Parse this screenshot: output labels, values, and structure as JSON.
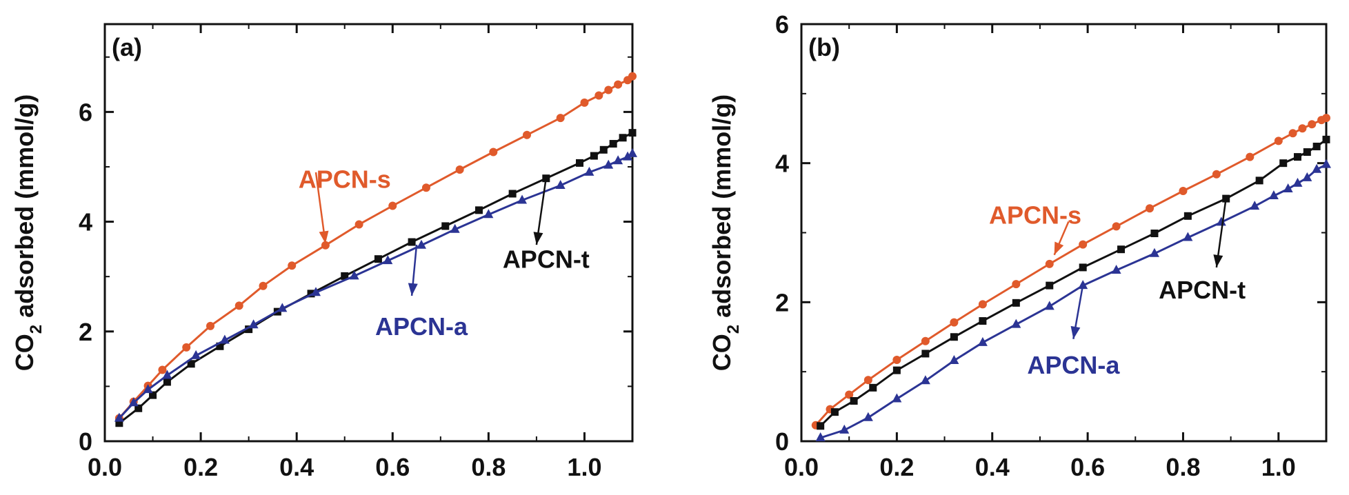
{
  "chart_data": [
    {
      "type": "line",
      "panel_label": "(a)",
      "xlabel": "",
      "ylabel": "CO2 adsorbed (mmol/g)",
      "ylabel_parts": {
        "pre": "CO",
        "sub": "2",
        "post": " adsorbed (mmol/g)"
      },
      "xlim": [
        0.0,
        1.1
      ],
      "ylim": [
        0,
        7.6
      ],
      "x_ticks": [
        0.0,
        0.2,
        0.4,
        0.6,
        0.8,
        1.0
      ],
      "x_tick_labels": [
        "0.0",
        "0.2",
        "0.4",
        "0.6",
        "0.8",
        "1.0"
      ],
      "y_ticks": [
        0,
        2,
        4,
        6
      ],
      "y_tick_labels": [
        "0",
        "2",
        "4",
        "6"
      ],
      "grid": false,
      "series": [
        {
          "name": "APCN-s",
          "color": "#e05a2b",
          "marker": "circle",
          "x": [
            0.03,
            0.06,
            0.09,
            0.12,
            0.17,
            0.22,
            0.28,
            0.33,
            0.39,
            0.46,
            0.53,
            0.6,
            0.67,
            0.74,
            0.81,
            0.88,
            0.95,
            1.0,
            1.03,
            1.05,
            1.07,
            1.09,
            1.1
          ],
          "y": [
            0.42,
            0.72,
            1.01,
            1.3,
            1.71,
            2.1,
            2.47,
            2.83,
            3.2,
            3.57,
            3.95,
            4.29,
            4.62,
            4.95,
            5.27,
            5.58,
            5.89,
            6.17,
            6.3,
            6.4,
            6.5,
            6.58,
            6.65
          ]
        },
        {
          "name": "APCN-t",
          "color": "#111111",
          "marker": "square",
          "x": [
            0.03,
            0.07,
            0.1,
            0.13,
            0.18,
            0.24,
            0.3,
            0.36,
            0.43,
            0.5,
            0.57,
            0.64,
            0.71,
            0.78,
            0.85,
            0.92,
            0.99,
            1.02,
            1.04,
            1.06,
            1.08,
            1.1
          ],
          "y": [
            0.33,
            0.6,
            0.84,
            1.08,
            1.41,
            1.73,
            2.04,
            2.36,
            2.69,
            3.01,
            3.32,
            3.63,
            3.92,
            4.21,
            4.51,
            4.79,
            5.07,
            5.2,
            5.31,
            5.42,
            5.53,
            5.62
          ]
        },
        {
          "name": "APCN-a",
          "color": "#2b3494",
          "marker": "triangle",
          "x": [
            0.03,
            0.06,
            0.09,
            0.13,
            0.19,
            0.25,
            0.31,
            0.37,
            0.44,
            0.52,
            0.59,
            0.66,
            0.73,
            0.8,
            0.87,
            0.95,
            1.01,
            1.05,
            1.07,
            1.09,
            1.1
          ],
          "y": [
            0.42,
            0.7,
            0.94,
            1.2,
            1.56,
            1.84,
            2.12,
            2.42,
            2.71,
            3.01,
            3.29,
            3.57,
            3.86,
            4.13,
            4.39,
            4.66,
            4.9,
            5.03,
            5.11,
            5.18,
            5.24
          ]
        }
      ],
      "annotations": [
        {
          "text": "APCN-s",
          "series": "APCN-s",
          "x": 0.5,
          "y": 4.78,
          "color": "#e05a2b",
          "arrow_from": [
            0.44,
            4.9
          ],
          "arrow_to": [
            0.46,
            3.6
          ]
        },
        {
          "text": "APCN-t",
          "series": "APCN-t",
          "x": 0.92,
          "y": 3.32,
          "color": "#111111",
          "arrow_from": [
            0.92,
            4.8
          ],
          "arrow_to": [
            0.9,
            3.58
          ]
        },
        {
          "text": "APCN-a",
          "series": "APCN-a",
          "x": 0.66,
          "y": 2.1,
          "color": "#2b3494",
          "arrow_from": [
            0.65,
            3.58
          ],
          "arrow_to": [
            0.64,
            2.65
          ]
        }
      ]
    },
    {
      "type": "line",
      "panel_label": "(b)",
      "xlabel": "",
      "ylabel": "CO2 adsorbed (mmol/g)",
      "ylabel_parts": {
        "pre": "CO",
        "sub": "2",
        "post": " adsorbed (mmol/g)"
      },
      "xlim": [
        0.0,
        1.1
      ],
      "ylim": [
        0,
        6
      ],
      "x_ticks": [
        0.0,
        0.2,
        0.4,
        0.6,
        0.8,
        1.0
      ],
      "x_tick_labels": [
        "0.0",
        "0.2",
        "0.4",
        "0.6",
        "0.8",
        "1.0"
      ],
      "y_ticks": [
        0,
        2,
        4,
        6
      ],
      "y_tick_labels": [
        "0",
        "2",
        "4",
        "6"
      ],
      "grid": false,
      "series": [
        {
          "name": "APCN-s",
          "color": "#e05a2b",
          "marker": "circle",
          "x": [
            0.03,
            0.06,
            0.1,
            0.14,
            0.2,
            0.26,
            0.32,
            0.38,
            0.45,
            0.52,
            0.59,
            0.66,
            0.73,
            0.8,
            0.87,
            0.94,
            1.0,
            1.03,
            1.05,
            1.07,
            1.09,
            1.1
          ],
          "y": [
            0.23,
            0.46,
            0.67,
            0.88,
            1.17,
            1.44,
            1.71,
            1.97,
            2.26,
            2.55,
            2.83,
            3.09,
            3.35,
            3.6,
            3.84,
            4.09,
            4.32,
            4.43,
            4.5,
            4.56,
            4.62,
            4.65
          ]
        },
        {
          "name": "APCN-t",
          "color": "#111111",
          "marker": "square",
          "x": [
            0.04,
            0.07,
            0.11,
            0.15,
            0.2,
            0.26,
            0.32,
            0.38,
            0.45,
            0.52,
            0.59,
            0.67,
            0.74,
            0.81,
            0.89,
            0.96,
            1.01,
            1.04,
            1.06,
            1.08,
            1.1
          ],
          "y": [
            0.22,
            0.42,
            0.58,
            0.77,
            1.02,
            1.26,
            1.5,
            1.73,
            1.99,
            2.24,
            2.5,
            2.76,
            2.99,
            3.24,
            3.49,
            3.75,
            4.0,
            4.09,
            4.16,
            4.24,
            4.34
          ]
        },
        {
          "name": "APCN-a",
          "color": "#2b3494",
          "marker": "triangle",
          "x": [
            0.04,
            0.09,
            0.14,
            0.2,
            0.26,
            0.32,
            0.38,
            0.45,
            0.52,
            0.59,
            0.66,
            0.74,
            0.81,
            0.88,
            0.95,
            0.99,
            1.02,
            1.04,
            1.06,
            1.08,
            1.1
          ],
          "y": [
            0.05,
            0.16,
            0.34,
            0.61,
            0.87,
            1.16,
            1.42,
            1.68,
            1.94,
            2.24,
            2.46,
            2.7,
            2.93,
            3.15,
            3.38,
            3.53,
            3.63,
            3.71,
            3.79,
            3.91,
            3.98
          ]
        }
      ],
      "annotations": [
        {
          "text": "APCN-s",
          "series": "APCN-s",
          "x": 0.49,
          "y": 3.26,
          "color": "#e05a2b",
          "arrow_from": [
            0.56,
            3.16
          ],
          "arrow_to": [
            0.53,
            2.68
          ]
        },
        {
          "text": "APCN-t",
          "series": "APCN-t",
          "x": 0.84,
          "y": 2.18,
          "color": "#111111",
          "arrow_from": [
            0.89,
            3.5
          ],
          "arrow_to": [
            0.87,
            2.5
          ]
        },
        {
          "text": "APCN-a",
          "series": "APCN-a",
          "x": 0.57,
          "y": 1.1,
          "color": "#2b3494",
          "arrow_from": [
            0.59,
            2.25
          ],
          "arrow_to": [
            0.57,
            1.47
          ]
        }
      ]
    }
  ]
}
